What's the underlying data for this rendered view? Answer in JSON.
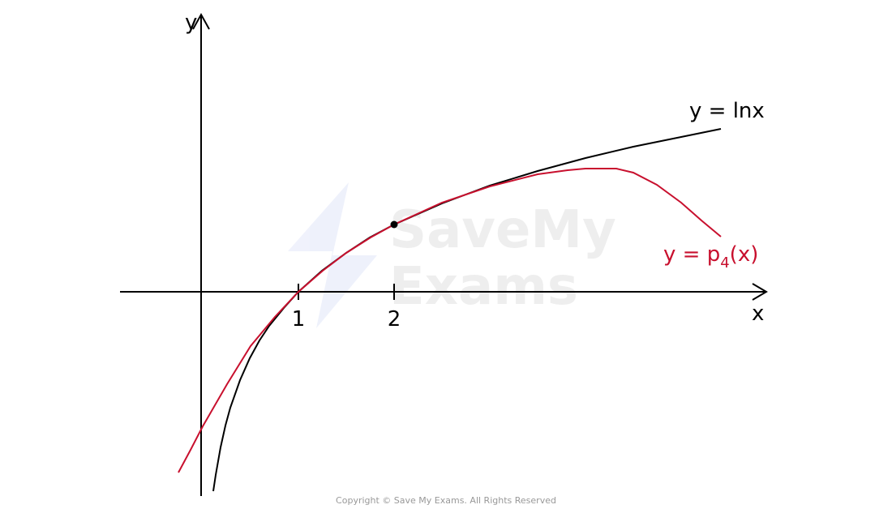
{
  "axes": {
    "x_label": "x",
    "y_label": "y",
    "x_ticks": [
      "1",
      "2"
    ]
  },
  "curves": {
    "ln": {
      "label": "y = lnx"
    },
    "taylor": {
      "label": {
        "main": "y = p",
        "subscript": "4",
        "suffix": "(x)"
      }
    }
  },
  "watermark": {
    "line1": "SaveMy",
    "line2": "Exams"
  },
  "footer": "Copyright © Save My Exams. All Rights Reserved"
}
